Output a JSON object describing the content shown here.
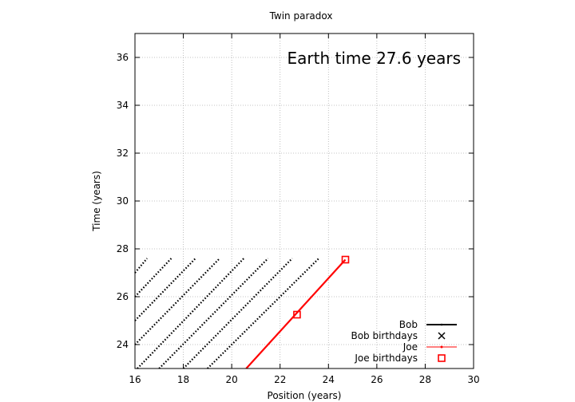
{
  "chart_data": {
    "type": "line",
    "title": "Twin paradox",
    "xlabel": "Position (years)",
    "ylabel": "Time (years)",
    "xlim": [
      16,
      30
    ],
    "ylim": [
      23,
      37
    ],
    "xticks": [
      "16",
      "18",
      "20",
      "22",
      "24",
      "26",
      "28",
      "30"
    ],
    "yticks": [
      "24",
      "26",
      "28",
      "30",
      "32",
      "34",
      "36"
    ],
    "grid": true,
    "legend_position": "bottom-right",
    "annotation": "Earth time 27.6 years",
    "series": [
      {
        "name": "Bob",
        "style": "dotted black worldlines",
        "color": "#000000",
        "segments": [
          {
            "x": [
              16.0,
              16.5
            ],
            "y": [
              27.0,
              27.6
            ]
          },
          {
            "x": [
              16.0,
              17.5
            ],
            "y": [
              26.0,
              27.6
            ]
          },
          {
            "x": [
              16.0,
              18.5
            ],
            "y": [
              25.0,
              27.6
            ]
          },
          {
            "x": [
              16.0,
              19.5
            ],
            "y": [
              24.0,
              27.6
            ]
          },
          {
            "x": [
              16.1,
              20.5
            ],
            "y": [
              23.0,
              27.6
            ]
          },
          {
            "x": [
              17.0,
              21.5
            ],
            "y": [
              23.0,
              27.6
            ]
          },
          {
            "x": [
              18.0,
              22.5
            ],
            "y": [
              23.0,
              27.6
            ]
          },
          {
            "x": [
              19.0,
              23.6
            ],
            "y": [
              23.0,
              27.6
            ]
          }
        ]
      },
      {
        "name": "Bob birthdays",
        "marker": "x",
        "color": "#000000",
        "points": []
      },
      {
        "name": "Joe",
        "color": "#ff0000",
        "segments": [
          {
            "x": [
              20.6,
              24.7
            ],
            "y": [
              23.0,
              27.55
            ]
          }
        ]
      },
      {
        "name": "Joe birthdays",
        "marker": "square",
        "color": "#ff0000",
        "points": [
          {
            "x": 22.7,
            "y": 25.25
          },
          {
            "x": 24.7,
            "y": 27.55
          }
        ]
      }
    ]
  }
}
